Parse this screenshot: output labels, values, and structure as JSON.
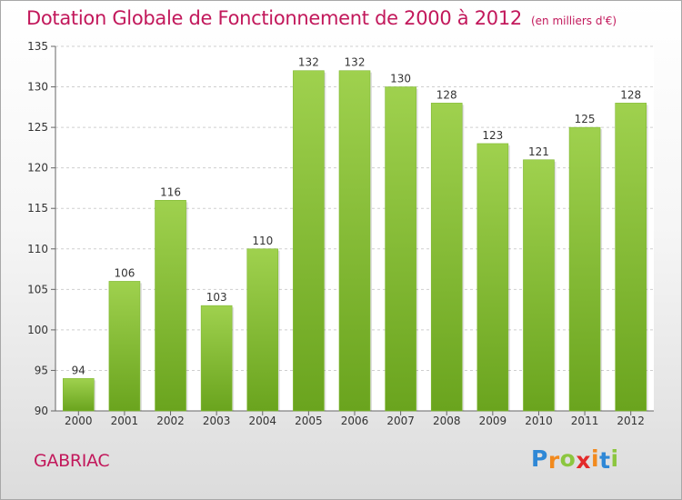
{
  "chart_data": {
    "type": "bar",
    "title": "Dotation Globale de Fonctionnement de 2000 à 2012",
    "subtitle": "(en milliers d'€)",
    "categories": [
      "2000",
      "2001",
      "2002",
      "2003",
      "2004",
      "2005",
      "2006",
      "2007",
      "2008",
      "2009",
      "2010",
      "2011",
      "2012"
    ],
    "values": [
      94,
      106,
      116,
      103,
      110,
      132,
      132,
      130,
      128,
      123,
      121,
      125,
      128
    ],
    "ylim": [
      90,
      135
    ],
    "yticks": [
      90,
      95,
      100,
      105,
      110,
      115,
      120,
      125,
      130,
      135
    ],
    "grid": true,
    "bar_color_top": "#9fd14e",
    "bar_color_bottom": "#6aa41e"
  },
  "footer": {
    "commune": "GABRIAC",
    "logo_letters": [
      {
        "ch": "P",
        "color": "#2f88d6"
      },
      {
        "ch": "r",
        "color": "#f28a1e"
      },
      {
        "ch": "o",
        "color": "#8cc63f"
      },
      {
        "ch": "x",
        "color": "#e32a2a"
      },
      {
        "ch": "i",
        "color": "#f28a1e"
      },
      {
        "ch": "t",
        "color": "#2f88d6"
      },
      {
        "ch": "i",
        "color": "#8cc63f"
      }
    ]
  }
}
